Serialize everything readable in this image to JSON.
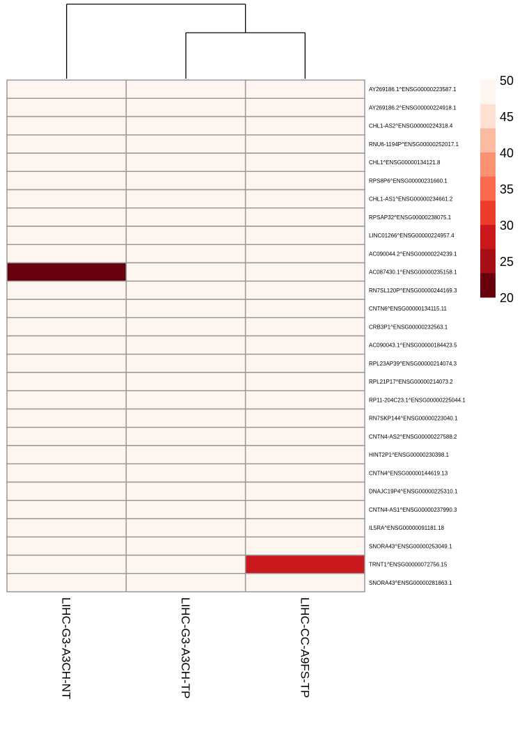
{
  "chart_data": {
    "type": "heatmap",
    "columns": [
      "LIHC-G3-A3CH-NT",
      "LIHC-G3-A3CH-TP",
      "LIHC-CC-A9FS-TP"
    ],
    "rows": [
      "AY269186.1^ENSG00000223587.1",
      "AY269186.2^ENSG00000224918.1",
      "CHL1-AS2^ENSG00000224318.4",
      "RNU6-1194P^ENSG00000252017.1",
      "CHL1^ENSG00000134121.8",
      "RPS8P6^ENSG00000231660.1",
      "CHL1-AS1^ENSG00000234661.2",
      "RPSAP32^ENSG00000238075.1",
      "LINC01266^ENSG00000224957.4",
      "AC090044.2^ENSG00000224239.1",
      "AC087430.1^ENSG00000235158.1",
      "RN7SL120P^ENSG00000244169.3",
      "CNTN6^ENSG00000134115.11",
      "CRB3P1^ENSG00000232563.1",
      "AC090043.1^ENSG00000184423.5",
      "RPL23AP39^ENSG00000214074.3",
      "RPL21P17^ENSG00000214073.2",
      "RP11-204C23.1^ENSG00000225044.1",
      "RN7SKP144^ENSG00000223040.1",
      "CNTN4-AS2^ENSG00000227588.2",
      "HINT2P1^ENSG00000230398.1",
      "CNTN4^ENSG00000144619.13",
      "DNAJC19P4^ENSG00000225310.1",
      "CNTN4-AS1^ENSG00000237990.3",
      "IL5RA^ENSG00000091181.18",
      "SNORA43^ENSG00000253049.1",
      "TRNT1^ENSG00000072756.15",
      "SNORA43^ENSG00000281863.1"
    ],
    "values": [
      [
        50,
        50,
        50
      ],
      [
        50,
        50,
        50
      ],
      [
        50,
        50,
        50
      ],
      [
        50,
        50,
        50
      ],
      [
        50,
        50,
        50
      ],
      [
        50,
        50,
        50
      ],
      [
        50,
        50,
        50
      ],
      [
        50,
        50,
        50
      ],
      [
        50,
        50,
        50
      ],
      [
        50,
        50,
        50
      ],
      [
        20,
        50,
        50
      ],
      [
        50,
        50,
        50
      ],
      [
        50,
        50,
        50
      ],
      [
        50,
        50,
        50
      ],
      [
        50,
        50,
        50
      ],
      [
        50,
        50,
        50
      ],
      [
        50,
        50,
        50
      ],
      [
        50,
        50,
        50
      ],
      [
        50,
        50,
        50
      ],
      [
        50,
        50,
        50
      ],
      [
        50,
        50,
        50
      ],
      [
        50,
        50,
        50
      ],
      [
        50,
        50,
        50
      ],
      [
        50,
        50,
        50
      ],
      [
        50,
        50,
        50
      ],
      [
        50,
        50,
        50
      ],
      [
        50,
        50,
        29
      ],
      [
        50,
        50,
        50
      ]
    ],
    "color_scale": {
      "min": 20,
      "max": 50,
      "colors": [
        "#67000d",
        "#a50f15",
        "#cb181d",
        "#ef3b2c",
        "#fb6a4a",
        "#fc9272",
        "#fcbba1",
        "#fee0d2",
        "#fff5f0"
      ]
    },
    "legend": {
      "ticks": [
        "50",
        "45",
        "40",
        "35",
        "30",
        "25",
        "20"
      ],
      "placement": "right"
    },
    "dendrogram": {
      "merges": [
        [
          2,
          3
        ],
        [
          1,
          "2+3"
        ]
      ]
    },
    "cell_border_color": "#999999"
  }
}
